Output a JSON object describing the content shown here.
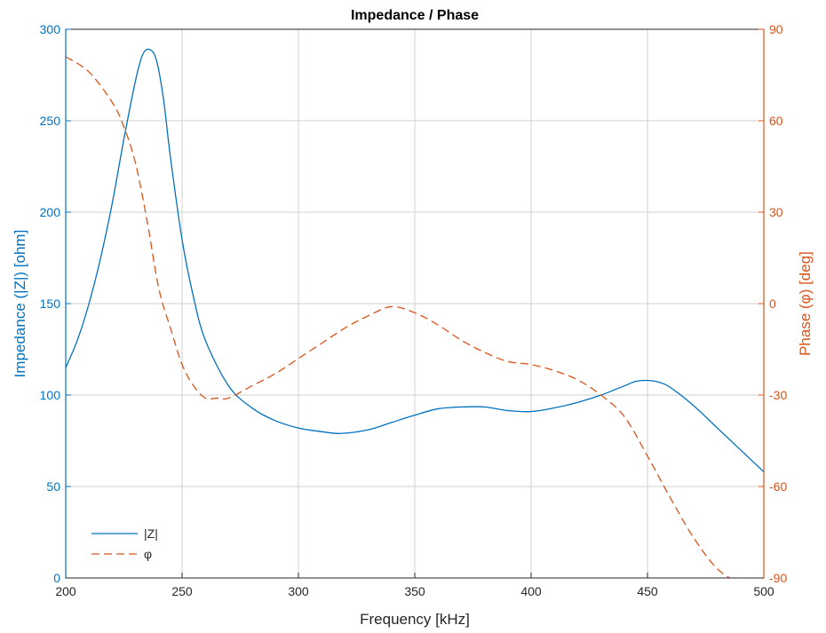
{
  "chart_data": {
    "type": "line",
    "title": "Impedance / Phase",
    "xlabel": "Frequency [kHz]",
    "ylabel_left": "Impedance (|Z|) [ohm]",
    "ylabel_right": "Phase (φ) [deg]",
    "xlim": [
      200,
      500
    ],
    "ylim_left": [
      0,
      300
    ],
    "ylim_right": [
      -90,
      90
    ],
    "xticks": [
      "200",
      "250",
      "300",
      "350",
      "400",
      "450",
      "500"
    ],
    "yticks_left": [
      "0",
      "50",
      "100",
      "150",
      "200",
      "250",
      "300"
    ],
    "yticks_right": [
      "-90",
      "-60",
      "-30",
      "0",
      "30",
      "60",
      "90"
    ],
    "grid": true,
    "legend_position": "bottom-left",
    "colors": {
      "left_axis": "#0072BD",
      "right_axis": "#D95319",
      "grid": "#d0d0d0"
    },
    "series": [
      {
        "name": "|Z|",
        "axis": "left",
        "style": "solid",
        "color": "#0072BD",
        "x": [
          200,
          205,
          210,
          215,
          220,
          225,
          230,
          233,
          236,
          239,
          242,
          245,
          250,
          255,
          260,
          270,
          280,
          290,
          300,
          310,
          318,
          330,
          340,
          350,
          360,
          370,
          380,
          390,
          400,
          410,
          420,
          430,
          440,
          445,
          450,
          455,
          460,
          470,
          480,
          490,
          500
        ],
        "y": [
          115,
          130,
          150,
          175,
          205,
          240,
          272,
          286,
          289,
          283,
          262,
          230,
          185,
          153,
          130,
          105,
          93,
          86,
          82,
          80,
          79,
          81,
          85,
          89,
          92.5,
          93.5,
          93.5,
          91.5,
          91,
          93,
          96,
          100,
          105,
          107.5,
          108,
          107,
          104,
          94,
          82,
          70,
          58
        ]
      },
      {
        "name": "φ",
        "axis": "right",
        "style": "dashed",
        "color": "#D95319",
        "x": [
          200,
          210,
          220,
          225,
          230,
          235,
          240,
          245,
          250,
          255,
          260,
          265,
          270,
          280,
          290,
          300,
          310,
          320,
          330,
          340,
          350,
          360,
          370,
          380,
          390,
          400,
          410,
          420,
          430,
          440,
          450,
          460,
          470,
          480,
          490,
          500
        ],
        "y": [
          81,
          76,
          66,
          58,
          46,
          27,
          5,
          -8,
          -20,
          -27,
          -31,
          -31,
          -31,
          -27,
          -23,
          -18,
          -13,
          -8,
          -4,
          -1,
          -3,
          -7,
          -12,
          -16,
          -19,
          -20,
          -22,
          -25,
          -30,
          -37,
          -50,
          -64,
          -77,
          -87,
          -92,
          -96
        ]
      }
    ]
  }
}
